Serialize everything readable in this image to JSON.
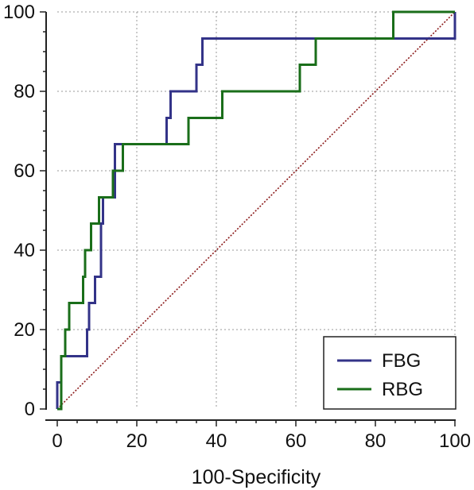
{
  "chart_data": {
    "type": "line",
    "title": "",
    "xlabel": "100-Specificity",
    "ylabel": "",
    "xlim": [
      0,
      100
    ],
    "ylim": [
      0,
      100
    ],
    "x_ticks": [
      "0",
      "20",
      "40",
      "60",
      "80",
      "100"
    ],
    "y_ticks": [
      "0",
      "20",
      "40",
      "60",
      "80",
      "100"
    ],
    "grid": true,
    "legend_position": "bottom-right",
    "series": [
      {
        "name": "FBG",
        "color": "#333388",
        "points": [
          [
            0,
            0
          ],
          [
            0,
            6.7
          ],
          [
            1,
            6.7
          ],
          [
            1,
            13.3
          ],
          [
            7.5,
            13.3
          ],
          [
            7.5,
            20
          ],
          [
            8,
            20
          ],
          [
            8,
            26.7
          ],
          [
            9.5,
            26.7
          ],
          [
            9.5,
            33.3
          ],
          [
            11,
            33.3
          ],
          [
            11,
            46.7
          ],
          [
            11.5,
            46.7
          ],
          [
            11.5,
            53.3
          ],
          [
            14.5,
            53.3
          ],
          [
            14.5,
            66.7
          ],
          [
            27.5,
            66.7
          ],
          [
            27.5,
            73.3
          ],
          [
            28.5,
            73.3
          ],
          [
            28.5,
            80
          ],
          [
            35,
            80
          ],
          [
            35,
            86.7
          ],
          [
            36.5,
            86.7
          ],
          [
            36.5,
            93.3
          ],
          [
            100,
            93.3
          ],
          [
            100,
            100
          ]
        ]
      },
      {
        "name": "RBG",
        "color": "#1a6e1a",
        "points": [
          [
            0,
            0
          ],
          [
            1,
            0
          ],
          [
            1,
            13.3
          ],
          [
            2,
            13.3
          ],
          [
            2,
            20
          ],
          [
            3,
            20
          ],
          [
            3,
            26.7
          ],
          [
            6.5,
            26.7
          ],
          [
            6.5,
            33.3
          ],
          [
            7,
            33.3
          ],
          [
            7,
            40
          ],
          [
            8.5,
            40
          ],
          [
            8.5,
            46.7
          ],
          [
            10.5,
            46.7
          ],
          [
            10.5,
            53.3
          ],
          [
            14,
            53.3
          ],
          [
            14,
            60
          ],
          [
            16.5,
            60
          ],
          [
            16.5,
            66.7
          ],
          [
            33,
            66.7
          ],
          [
            33,
            73.3
          ],
          [
            41.5,
            73.3
          ],
          [
            41.5,
            80
          ],
          [
            61,
            80
          ],
          [
            61,
            86.7
          ],
          [
            65,
            86.7
          ],
          [
            65,
            93.3
          ],
          [
            84.5,
            93.3
          ],
          [
            84.5,
            100
          ],
          [
            100,
            100
          ]
        ]
      }
    ],
    "reference_line": {
      "color": "#8b1a1a",
      "points": [
        [
          0,
          0
        ],
        [
          100,
          100
        ]
      ]
    }
  }
}
